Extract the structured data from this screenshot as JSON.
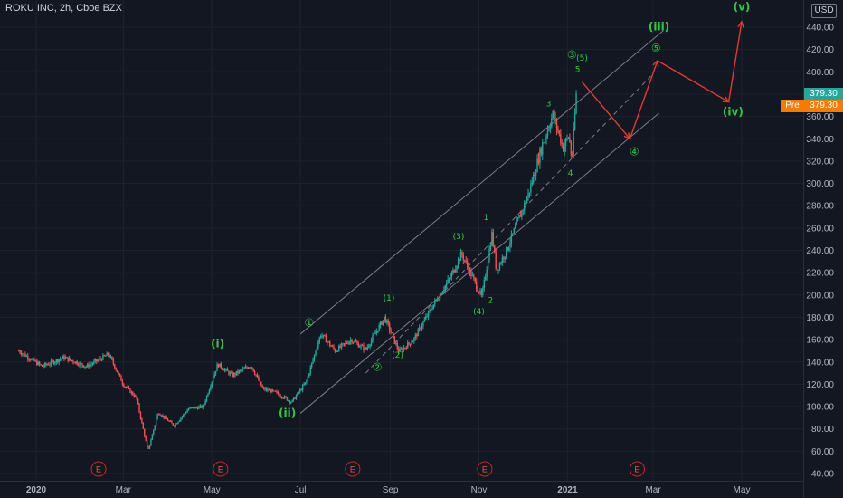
{
  "header": {
    "title": "ROKU INC, 2h, Cboe BZX",
    "currency_badge": "USD"
  },
  "price_tags": {
    "last": "379.30",
    "pre_label": "Pre",
    "pre": "379.30"
  },
  "colors": {
    "background": "#131722",
    "up_candle": "#26a69a",
    "down_candle": "#ef5350",
    "wave_label": "#2ecc40",
    "projection": "#e53935",
    "channel": "#9598a1",
    "grid": "#1e222d",
    "last_price_tag": "#26a69a",
    "pre_tag": "#f57c00"
  },
  "chart_data": {
    "type": "candlestick",
    "title": "ROKU INC, 2h, Cboe BZX",
    "ylim": [
      40,
      450
    ],
    "y_ticks": [
      "440.00",
      "420.00",
      "400.00",
      "380.00",
      "360.00",
      "340.00",
      "320.00",
      "300.00",
      "280.00",
      "260.00",
      "240.00",
      "220.00",
      "200.00",
      "180.00",
      "160.00",
      "140.00",
      "120.00",
      "100.00",
      "80.00",
      "60.00",
      "40.00"
    ],
    "x_tick_labels": [
      "2020",
      "Mar",
      "May",
      "Jul",
      "Sep",
      "Nov",
      "2021",
      "Mar",
      "May"
    ],
    "x_ticks": [
      "2020-01-01",
      "2020-03-01",
      "2020-05-01",
      "2020-07-01",
      "2020-09-01",
      "2020-11-01",
      "2021-01-01",
      "2021-03-01",
      "2021-05-01"
    ],
    "grid": true,
    "price_path": [
      [
        "2019-12-20",
        150
      ],
      [
        "2020-01-05",
        136
      ],
      [
        "2020-01-20",
        144
      ],
      [
        "2020-02-05",
        136
      ],
      [
        "2020-02-20",
        147
      ],
      [
        "2020-03-01",
        120
      ],
      [
        "2020-03-10",
        108
      ],
      [
        "2020-03-18",
        60
      ],
      [
        "2020-03-25",
        95
      ],
      [
        "2020-04-05",
        83
      ],
      [
        "2020-04-15",
        98
      ],
      [
        "2020-04-25",
        100
      ],
      [
        "2020-05-05",
        138
      ],
      [
        "2020-05-15",
        128
      ],
      [
        "2020-05-28",
        137
      ],
      [
        "2020-06-05",
        116
      ],
      [
        "2020-06-15",
        112
      ],
      [
        "2020-06-25",
        104
      ],
      [
        "2020-07-05",
        122
      ],
      [
        "2020-07-15",
        165
      ],
      [
        "2020-07-25",
        150
      ],
      [
        "2020-08-05",
        160
      ],
      [
        "2020-08-15",
        151
      ],
      [
        "2020-08-28",
        180
      ],
      [
        "2020-09-07",
        149
      ],
      [
        "2020-09-17",
        160
      ],
      [
        "2020-09-30",
        190
      ],
      [
        "2020-10-12",
        215
      ],
      [
        "2020-10-20",
        237
      ],
      [
        "2020-11-03",
        198
      ],
      [
        "2020-11-10",
        255
      ],
      [
        "2020-11-13",
        222
      ],
      [
        "2020-11-20",
        240
      ],
      [
        "2020-12-05",
        290
      ],
      [
        "2020-12-15",
        336
      ],
      [
        "2020-12-22",
        362
      ],
      [
        "2020-12-29",
        332
      ],
      [
        "2021-01-02",
        343
      ],
      [
        "2021-01-04",
        320
      ],
      [
        "2021-01-07",
        379.3
      ]
    ],
    "wave_labels": [
      {
        "label": "①",
        "date": "2020-07-07",
        "value": 172
      },
      {
        "label": "②",
        "date": "2020-08-23",
        "value": 132
      },
      {
        "label": "(i)",
        "date": "2020-05-05",
        "value": 153
      },
      {
        "label": "(ii)",
        "date": "2020-06-22",
        "value": 91
      },
      {
        "label": "(1)",
        "date": "2020-08-31",
        "value": 195
      },
      {
        "label": "(2)",
        "date": "2020-09-06",
        "value": 144
      },
      {
        "label": "(3)",
        "date": "2020-10-18",
        "value": 250
      },
      {
        "label": "(4)",
        "date": "2020-11-01",
        "value": 183
      },
      {
        "label": "1",
        "date": "2020-11-06",
        "value": 267
      },
      {
        "label": "2",
        "date": "2020-11-09",
        "value": 193
      },
      {
        "label": "3",
        "date": "2020-12-19",
        "value": 369
      },
      {
        "label": "4",
        "date": "2021-01-03",
        "value": 307
      },
      {
        "label": "③",
        "date": "2021-01-04",
        "value": 412
      },
      {
        "label": "(5)",
        "date": "2021-01-11",
        "value": 410
      },
      {
        "label": "5",
        "date": "2021-01-08",
        "value": 400
      },
      {
        "label": "(iii)",
        "date": "2021-03-05",
        "value": 437
      },
      {
        "label": "⑤",
        "date": "2021-03-03",
        "value": 418
      },
      {
        "label": "④",
        "date": "2021-02-16",
        "value": 325
      },
      {
        "label": "(iv)",
        "date": "2021-04-25",
        "value": 361
      },
      {
        "label": "(v)",
        "date": "2021-05-01",
        "value": 455
      }
    ],
    "projection_path": [
      [
        "2021-01-11",
        391
      ],
      [
        "2021-02-13",
        340
      ],
      [
        "2021-03-04",
        410
      ],
      [
        "2021-04-22",
        373
      ],
      [
        "2021-05-01",
        445
      ]
    ],
    "channel_lines": [
      {
        "style": "solid",
        "from": [
          "2020-07-01",
          165
        ],
        "to": [
          "2021-03-08",
          437
        ]
      },
      {
        "style": "dashed",
        "from": [
          "2020-08-15",
          130
        ],
        "to": [
          "2021-02-28",
          397
        ]
      },
      {
        "style": "solid",
        "from": [
          "2020-07-01",
          94
        ],
        "to": [
          "2021-03-05",
          363
        ]
      }
    ],
    "earnings_markers": [
      {
        "label": "E",
        "date": "2020-02-13"
      },
      {
        "label": "E",
        "date": "2020-05-07"
      },
      {
        "label": "E",
        "date": "2020-08-06"
      },
      {
        "label": "E",
        "date": "2020-11-05"
      },
      {
        "label": "E",
        "date": "2021-02-18"
      }
    ]
  }
}
